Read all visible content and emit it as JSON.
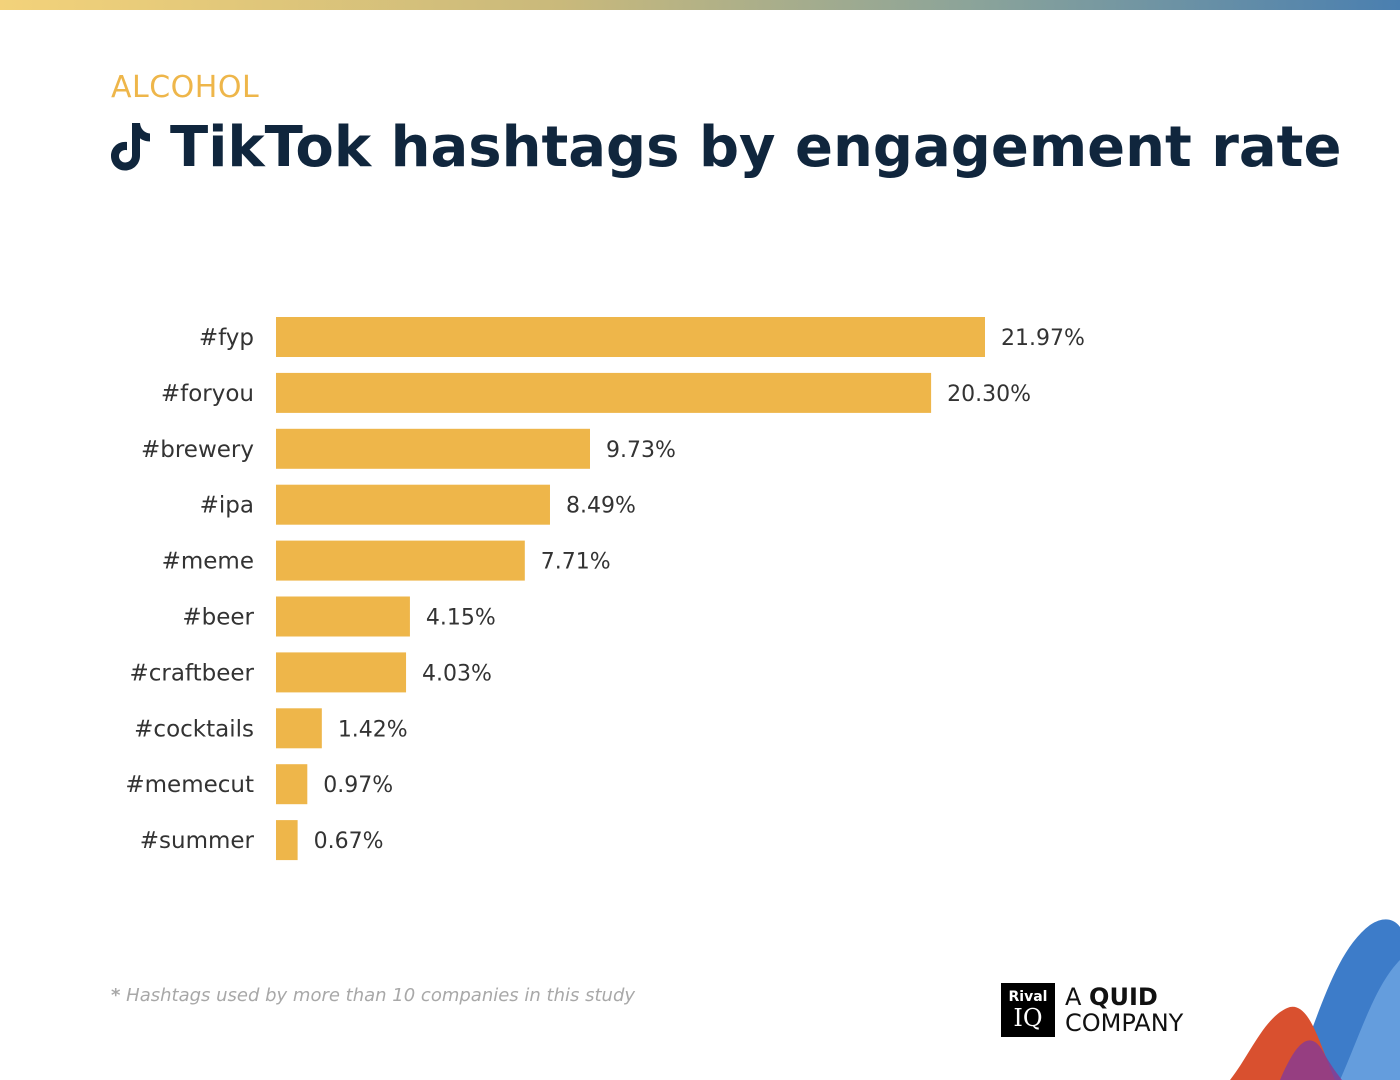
{
  "header": {
    "category": "ALCOHOL",
    "title": "TikTok hashtags by engagement rate",
    "icon": "tiktok-icon"
  },
  "chart_data": {
    "type": "bar",
    "orientation": "horizontal",
    "categories": [
      "#fyp",
      "#foryou",
      "#brewery",
      "#ipa",
      "#meme",
      "#beer",
      "#craftbeer",
      "#cocktails",
      "#memecut",
      "#summer"
    ],
    "values": [
      21.97,
      20.3,
      9.73,
      8.49,
      7.71,
      4.15,
      4.03,
      1.42,
      0.97,
      0.67
    ],
    "value_labels": [
      "21.97%",
      "20.30%",
      "9.73%",
      "8.49%",
      "7.71%",
      "4.15%",
      "4.03%",
      "1.42%",
      "0.97%",
      "0.67%"
    ],
    "unit": "%",
    "bar_color": "#eeb64a",
    "grid": false,
    "legend": "none"
  },
  "footnote": {
    "star": "*",
    "text": "Hashtags used by more than 10 companies in this study"
  },
  "brand": {
    "rival_line1": "Rival",
    "rival_line2": "IQ",
    "quid_prefix": "A ",
    "quid_name": "QUID",
    "quid_suffix": "COMPANY"
  },
  "colors": {
    "accent": "#eeb64a",
    "title": "#10263d",
    "label": "#333333"
  }
}
